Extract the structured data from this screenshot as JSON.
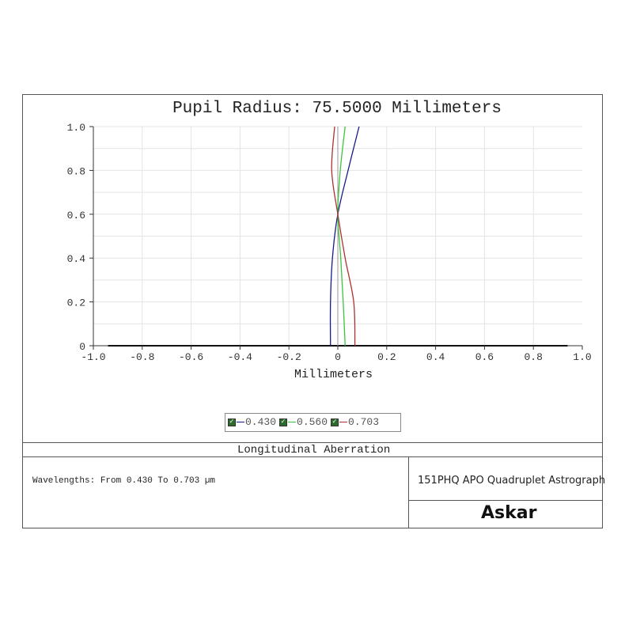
{
  "chart_data": {
    "type": "line",
    "title": "Pupil Radius: 75.5000 Millimeters",
    "xlabel": "Millimeters",
    "ylabel": "",
    "xlim": [
      -1.0,
      1.0
    ],
    "ylim": [
      0,
      1.0
    ],
    "grid": true,
    "xticks": [
      "-1.0",
      "-0.8",
      "-0.6",
      "-0.4",
      "-0.2",
      "0",
      "0.2",
      "0.4",
      "0.6",
      "0.8",
      "1.0"
    ],
    "yticks": [
      "0",
      "0.2",
      "0.4",
      "0.6",
      "0.8",
      "1.0"
    ],
    "legend_position": "bottom",
    "series": [
      {
        "name": "0.430",
        "color": "#1a1a8c",
        "points": [
          [
            -0.03,
            0
          ],
          [
            -0.03,
            0.2
          ],
          [
            -0.022,
            0.4
          ],
          [
            0,
            0.6
          ],
          [
            0.042,
            0.8
          ],
          [
            0.087,
            1.0
          ]
        ]
      },
      {
        "name": "0.560",
        "color": "#3cc43c",
        "points": [
          [
            0.03,
            0
          ],
          [
            0.022,
            0.2
          ],
          [
            0.012,
            0.4
          ],
          [
            0,
            0.6
          ],
          [
            0.01,
            0.8
          ],
          [
            0.03,
            1.0
          ]
        ]
      },
      {
        "name": "0.703",
        "color": "#b03030",
        "points": [
          [
            0.07,
            0
          ],
          [
            0.065,
            0.2
          ],
          [
            0.03,
            0.4
          ],
          [
            0,
            0.6
          ],
          [
            -0.025,
            0.8
          ],
          [
            -0.013,
            1.0
          ]
        ]
      }
    ]
  },
  "plot_name": "Longitudinal Aberration",
  "wavelengths_text": "Wavelengths: From 0.430 To 0.703 µm",
  "product_name": "151PHQ APO Quadruplet Astrograph",
  "brand_logo": "Askar"
}
